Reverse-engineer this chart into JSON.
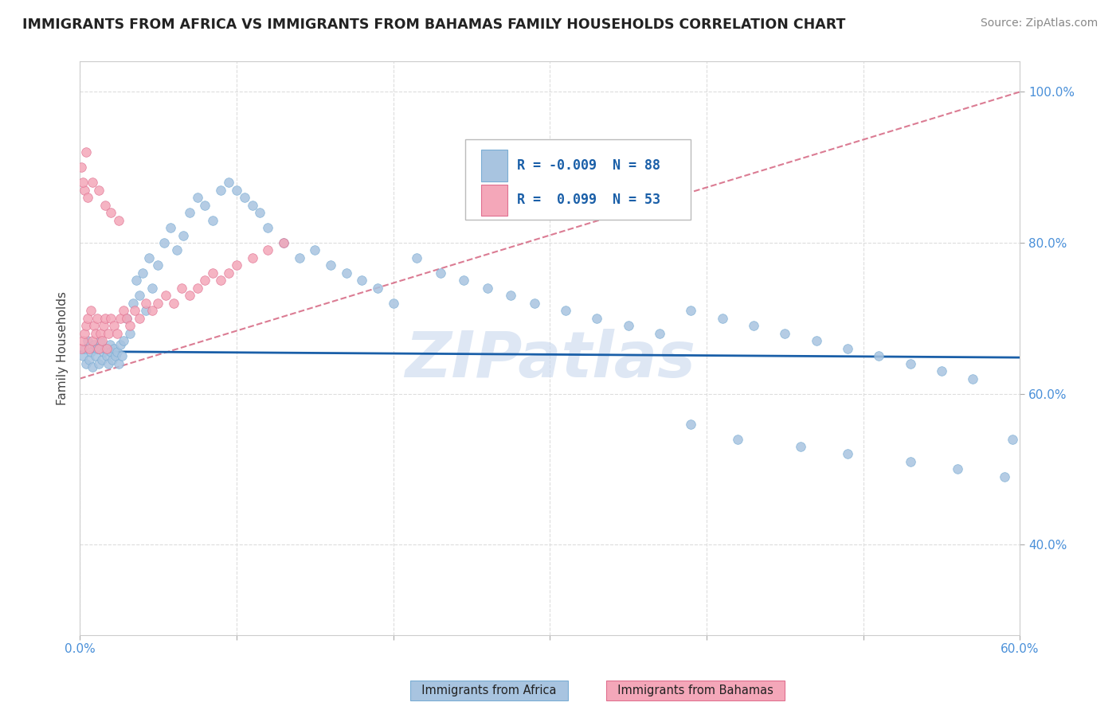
{
  "title": "IMMIGRANTS FROM AFRICA VS IMMIGRANTS FROM BAHAMAS FAMILY HOUSEHOLDS CORRELATION CHART",
  "source": "Source: ZipAtlas.com",
  "ylabel": "Family Households",
  "xlim": [
    0.0,
    0.6
  ],
  "ylim": [
    0.28,
    1.04
  ],
  "xticks": [
    0.0,
    0.1,
    0.2,
    0.3,
    0.4,
    0.5,
    0.6
  ],
  "xticklabels": [
    "0.0%",
    "",
    "",
    "",
    "",
    "",
    "60.0%"
  ],
  "yticks": [
    0.4,
    0.6,
    0.8,
    1.0
  ],
  "yticklabels": [
    "40.0%",
    "60.0%",
    "80.0%",
    "100.0%"
  ],
  "africa_color": "#a8c4e0",
  "africa_edge_color": "#7aadd4",
  "bahamas_color": "#f4a7b9",
  "bahamas_edge_color": "#e07090",
  "africa_line_color": "#1a5fa8",
  "bahamas_line_color": "#cc4466",
  "legend_R_africa": "-0.009",
  "legend_N_africa": "88",
  "legend_R_bahamas": "0.099",
  "legend_N_bahamas": "53",
  "watermark": "ZIPatlas",
  "africa_x": [
    0.002,
    0.003,
    0.004,
    0.005,
    0.006,
    0.007,
    0.008,
    0.009,
    0.01,
    0.011,
    0.012,
    0.013,
    0.014,
    0.015,
    0.016,
    0.017,
    0.018,
    0.019,
    0.02,
    0.021,
    0.022,
    0.023,
    0.024,
    0.025,
    0.026,
    0.027,
    0.028,
    0.03,
    0.032,
    0.034,
    0.036,
    0.038,
    0.04,
    0.042,
    0.044,
    0.046,
    0.05,
    0.054,
    0.058,
    0.062,
    0.066,
    0.07,
    0.075,
    0.08,
    0.085,
    0.09,
    0.095,
    0.1,
    0.105,
    0.11,
    0.115,
    0.12,
    0.13,
    0.14,
    0.15,
    0.16,
    0.17,
    0.18,
    0.19,
    0.2,
    0.215,
    0.23,
    0.245,
    0.26,
    0.275,
    0.29,
    0.31,
    0.33,
    0.35,
    0.37,
    0.39,
    0.41,
    0.43,
    0.45,
    0.47,
    0.49,
    0.51,
    0.53,
    0.55,
    0.57,
    0.39,
    0.42,
    0.46,
    0.49,
    0.53,
    0.56,
    0.59,
    0.595
  ],
  "africa_y": [
    0.65,
    0.66,
    0.64,
    0.67,
    0.645,
    0.655,
    0.635,
    0.665,
    0.65,
    0.66,
    0.64,
    0.67,
    0.645,
    0.655,
    0.66,
    0.65,
    0.64,
    0.665,
    0.655,
    0.645,
    0.66,
    0.65,
    0.655,
    0.64,
    0.665,
    0.65,
    0.67,
    0.7,
    0.68,
    0.72,
    0.75,
    0.73,
    0.76,
    0.71,
    0.78,
    0.74,
    0.77,
    0.8,
    0.82,
    0.79,
    0.81,
    0.84,
    0.86,
    0.85,
    0.83,
    0.87,
    0.88,
    0.87,
    0.86,
    0.85,
    0.84,
    0.82,
    0.8,
    0.78,
    0.79,
    0.77,
    0.76,
    0.75,
    0.74,
    0.72,
    0.78,
    0.76,
    0.75,
    0.74,
    0.73,
    0.72,
    0.71,
    0.7,
    0.69,
    0.68,
    0.71,
    0.7,
    0.69,
    0.68,
    0.67,
    0.66,
    0.65,
    0.64,
    0.63,
    0.62,
    0.56,
    0.54,
    0.53,
    0.52,
    0.51,
    0.5,
    0.49,
    0.54
  ],
  "bahamas_x": [
    0.001,
    0.002,
    0.003,
    0.004,
    0.005,
    0.006,
    0.007,
    0.008,
    0.009,
    0.01,
    0.011,
    0.012,
    0.013,
    0.014,
    0.015,
    0.016,
    0.017,
    0.018,
    0.02,
    0.022,
    0.024,
    0.026,
    0.028,
    0.03,
    0.032,
    0.035,
    0.038,
    0.042,
    0.046,
    0.05,
    0.055,
    0.06,
    0.065,
    0.07,
    0.075,
    0.08,
    0.085,
    0.09,
    0.095,
    0.1,
    0.11,
    0.12,
    0.13,
    0.003,
    0.005,
    0.008,
    0.012,
    0.016,
    0.02,
    0.025,
    0.001,
    0.002,
    0.004
  ],
  "bahamas_y": [
    0.66,
    0.67,
    0.68,
    0.69,
    0.7,
    0.66,
    0.71,
    0.67,
    0.69,
    0.68,
    0.7,
    0.66,
    0.68,
    0.67,
    0.69,
    0.7,
    0.66,
    0.68,
    0.7,
    0.69,
    0.68,
    0.7,
    0.71,
    0.7,
    0.69,
    0.71,
    0.7,
    0.72,
    0.71,
    0.72,
    0.73,
    0.72,
    0.74,
    0.73,
    0.74,
    0.75,
    0.76,
    0.75,
    0.76,
    0.77,
    0.78,
    0.79,
    0.8,
    0.87,
    0.86,
    0.88,
    0.87,
    0.85,
    0.84,
    0.83,
    0.9,
    0.88,
    0.92
  ]
}
